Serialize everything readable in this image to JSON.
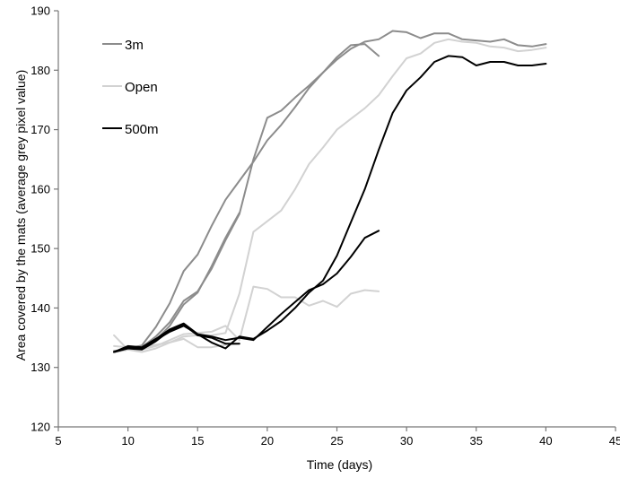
{
  "chart_data": {
    "type": "line",
    "title": "",
    "xlabel": "Time (days)",
    "ylabel": "Area covered by the mats (average grey pixel value)",
    "xlim": [
      5,
      45
    ],
    "ylim": [
      120,
      190
    ],
    "x_ticks": [
      5,
      10,
      15,
      20,
      25,
      30,
      35,
      40,
      45
    ],
    "y_ticks": [
      120,
      130,
      140,
      150,
      160,
      170,
      180,
      190
    ],
    "x_tick_labels": [
      "5",
      "10",
      "15",
      "20",
      "25",
      "30",
      "35",
      "40",
      "45"
    ],
    "y_tick_labels": [
      "120",
      "130",
      "140",
      "150",
      "160",
      "170",
      "180",
      "190"
    ],
    "grid": false,
    "legend_position": "top-left",
    "legend": [
      {
        "label": "3m",
        "color": "#8c8c8c"
      },
      {
        "label": "Open",
        "color": "#d2d2d2"
      },
      {
        "label": "500m",
        "color": "#000000"
      }
    ],
    "series": [
      {
        "name": "3m",
        "color": "#8c8c8c",
        "width": 2,
        "points": [
          [
            9,
            132.6
          ],
          [
            10,
            133.2
          ],
          [
            11,
            133.7
          ],
          [
            12,
            136.8
          ],
          [
            13,
            140.8
          ],
          [
            14,
            146.2
          ],
          [
            15,
            149.0
          ],
          [
            16,
            153.8
          ],
          [
            17,
            158.2
          ],
          [
            18,
            161.4
          ],
          [
            19,
            164.6
          ],
          [
            20,
            168.2
          ],
          [
            21,
            170.8
          ],
          [
            22,
            173.8
          ],
          [
            23,
            177.0
          ],
          [
            24,
            179.6
          ],
          [
            25,
            181.8
          ],
          [
            26,
            183.6
          ],
          [
            27,
            184.8
          ],
          [
            28,
            185.2
          ],
          [
            29,
            186.6
          ],
          [
            30,
            186.4
          ],
          [
            31,
            185.4
          ],
          [
            32,
            186.2
          ],
          [
            33,
            186.2
          ],
          [
            34,
            185.2
          ],
          [
            35,
            185.0
          ],
          [
            36,
            184.8
          ],
          [
            37,
            185.2
          ],
          [
            38,
            184.2
          ],
          [
            39,
            184.0
          ],
          [
            40,
            184.4
          ]
        ]
      },
      {
        "name": "",
        "color": "#8c8c8c",
        "width": 2,
        "points": [
          [
            9,
            132.6
          ],
          [
            10,
            133.0
          ],
          [
            11,
            133.4
          ],
          [
            12,
            135.2
          ],
          [
            13,
            137.6
          ],
          [
            14,
            141.2
          ],
          [
            15,
            142.8
          ],
          [
            16,
            146.6
          ],
          [
            17,
            151.4
          ],
          [
            18,
            155.8
          ],
          [
            19,
            165.0
          ],
          [
            20,
            172.0
          ],
          [
            21,
            173.2
          ],
          [
            22,
            175.4
          ],
          [
            23,
            177.4
          ],
          [
            24,
            179.6
          ],
          [
            25,
            182.2
          ],
          [
            26,
            184.2
          ],
          [
            27,
            184.4
          ],
          [
            28,
            182.4
          ]
        ]
      },
      {
        "name": "",
        "color": "#8c8c8c",
        "width": 2,
        "points": [
          [
            9,
            132.8
          ],
          [
            10,
            133.0
          ],
          [
            11,
            133.4
          ],
          [
            12,
            134.6
          ],
          [
            13,
            137.0
          ],
          [
            14,
            140.6
          ],
          [
            15,
            142.6
          ],
          [
            16,
            147.0
          ],
          [
            17,
            151.8
          ],
          [
            18,
            156.0
          ]
        ]
      },
      {
        "name": "Open",
        "color": "#d2d2d2",
        "width": 2,
        "points": [
          [
            9,
            132.6
          ],
          [
            10,
            133.0
          ],
          [
            11,
            132.6
          ],
          [
            12,
            133.2
          ],
          [
            13,
            134.2
          ],
          [
            14,
            135.2
          ],
          [
            15,
            135.4
          ],
          [
            16,
            135.4
          ],
          [
            17,
            135.8
          ],
          [
            18,
            142.4
          ],
          [
            19,
            152.8
          ],
          [
            20,
            154.6
          ],
          [
            21,
            156.4
          ],
          [
            22,
            160.0
          ],
          [
            23,
            164.2
          ],
          [
            24,
            167.0
          ],
          [
            25,
            170.0
          ],
          [
            26,
            171.8
          ],
          [
            27,
            173.6
          ],
          [
            28,
            175.8
          ],
          [
            29,
            179.0
          ],
          [
            30,
            182.0
          ],
          [
            31,
            182.8
          ],
          [
            32,
            184.6
          ],
          [
            33,
            185.2
          ],
          [
            34,
            184.8
          ],
          [
            35,
            184.6
          ],
          [
            36,
            184.0
          ],
          [
            37,
            183.8
          ],
          [
            38,
            183.2
          ],
          [
            39,
            183.4
          ],
          [
            40,
            183.8
          ]
        ]
      },
      {
        "name": "",
        "color": "#d2d2d2",
        "width": 2,
        "points": [
          [
            9,
            135.4
          ],
          [
            10,
            133.0
          ],
          [
            11,
            133.4
          ],
          [
            12,
            133.8
          ],
          [
            13,
            134.2
          ],
          [
            14,
            134.8
          ],
          [
            15,
            133.4
          ],
          [
            16,
            133.4
          ],
          [
            17,
            133.8
          ],
          [
            18,
            134.0
          ]
        ]
      },
      {
        "name": "",
        "color": "#d2d2d2",
        "width": 2,
        "points": [
          [
            9,
            133.6
          ],
          [
            10,
            133.4
          ],
          [
            11,
            133.0
          ],
          [
            12,
            133.6
          ],
          [
            13,
            134.6
          ],
          [
            14,
            135.6
          ],
          [
            15,
            135.8
          ],
          [
            16,
            136.0
          ],
          [
            17,
            137.0
          ],
          [
            18,
            134.6
          ],
          [
            19,
            143.6
          ],
          [
            20,
            143.2
          ],
          [
            21,
            141.8
          ],
          [
            22,
            141.8
          ],
          [
            23,
            140.4
          ],
          [
            24,
            141.2
          ],
          [
            25,
            140.2
          ],
          [
            26,
            142.4
          ],
          [
            27,
            143.0
          ],
          [
            28,
            142.8
          ]
        ]
      },
      {
        "name": "500m",
        "color": "#000000",
        "width": 2,
        "points": [
          [
            9,
            132.6
          ],
          [
            10,
            133.6
          ],
          [
            11,
            133.4
          ],
          [
            12,
            134.8
          ],
          [
            13,
            136.4
          ],
          [
            14,
            137.4
          ],
          [
            15,
            135.6
          ],
          [
            16,
            134.2
          ],
          [
            17,
            133.2
          ],
          [
            18,
            135.2
          ],
          [
            19,
            134.8
          ],
          [
            20,
            136.2
          ],
          [
            21,
            137.8
          ],
          [
            22,
            140.0
          ],
          [
            23,
            142.6
          ],
          [
            24,
            144.6
          ],
          [
            25,
            148.8
          ],
          [
            26,
            154.4
          ],
          [
            27,
            160.0
          ],
          [
            28,
            166.6
          ],
          [
            29,
            172.8
          ],
          [
            30,
            176.6
          ],
          [
            31,
            178.8
          ],
          [
            32,
            181.4
          ],
          [
            33,
            182.4
          ],
          [
            34,
            182.2
          ],
          [
            35,
            180.8
          ],
          [
            36,
            181.4
          ],
          [
            37,
            181.4
          ],
          [
            38,
            180.8
          ],
          [
            39,
            180.8
          ],
          [
            40,
            181.1
          ]
        ]
      },
      {
        "name": "",
        "color": "#000000",
        "width": 2,
        "points": [
          [
            9,
            132.6
          ],
          [
            10,
            133.2
          ],
          [
            11,
            133.0
          ],
          [
            12,
            134.4
          ],
          [
            13,
            136.2
          ],
          [
            14,
            137.2
          ],
          [
            15,
            135.4
          ],
          [
            16,
            135.0
          ],
          [
            17,
            134.0
          ],
          [
            18,
            134.0
          ]
        ]
      },
      {
        "name": "",
        "color": "#000000",
        "width": 2,
        "points": [
          [
            9,
            132.6
          ],
          [
            10,
            133.4
          ],
          [
            11,
            133.2
          ],
          [
            12,
            134.6
          ],
          [
            13,
            136.0
          ],
          [
            14,
            137.0
          ],
          [
            15,
            135.6
          ],
          [
            16,
            135.2
          ],
          [
            17,
            134.6
          ],
          [
            18,
            135.0
          ],
          [
            19,
            134.6
          ],
          [
            20,
            136.8
          ],
          [
            21,
            139.0
          ],
          [
            22,
            141.0
          ],
          [
            23,
            143.0
          ],
          [
            24,
            144.0
          ],
          [
            25,
            145.8
          ],
          [
            26,
            148.6
          ],
          [
            27,
            151.8
          ],
          [
            28,
            153.0
          ]
        ]
      }
    ]
  }
}
